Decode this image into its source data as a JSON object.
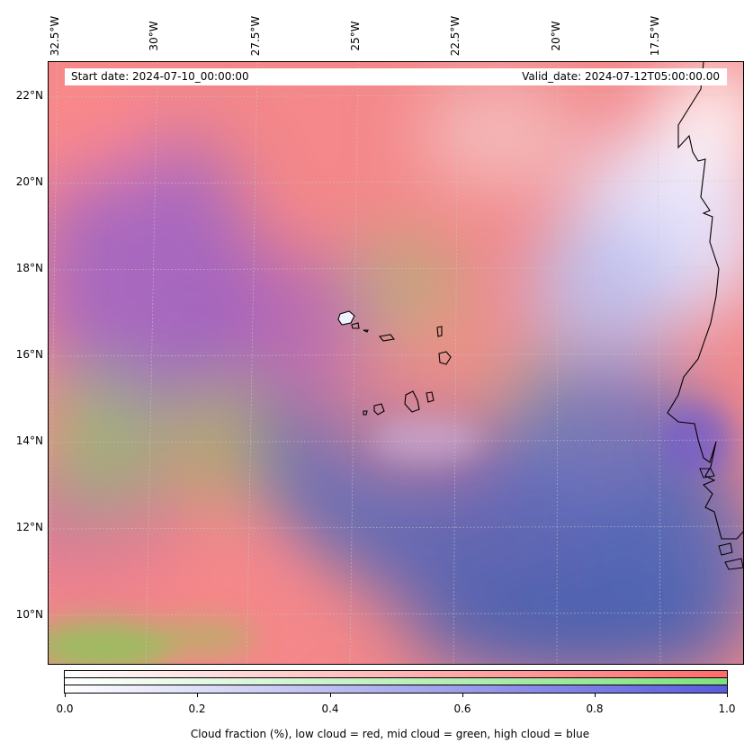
{
  "map": {
    "start_date": "Start date: 2024-07-10_00:00:00",
    "valid_date": "Valid_date: 2024-07-12T05:00:00.00",
    "lon_labels": [
      "32.5°W",
      "30°W",
      "27.5°W",
      "25°W",
      "22.5°W",
      "20°W",
      "17.5°W"
    ],
    "lat_labels": [
      "22°N",
      "20°N",
      "18°N",
      "16°N",
      "14°N",
      "12°N",
      "10°N"
    ],
    "colors": {
      "low_cloud": "#ff6b6b",
      "mid_cloud": "#7fe07f",
      "high_cloud": "#5a5adf"
    }
  },
  "colorbar": {
    "ticks": [
      "0.0",
      "0.2",
      "0.4",
      "0.6",
      "0.8",
      "1.0"
    ],
    "label": "Cloud fraction (%), low cloud = red, mid cloud = green, high cloud = blue",
    "range": [
      0.0,
      1.0
    ]
  }
}
